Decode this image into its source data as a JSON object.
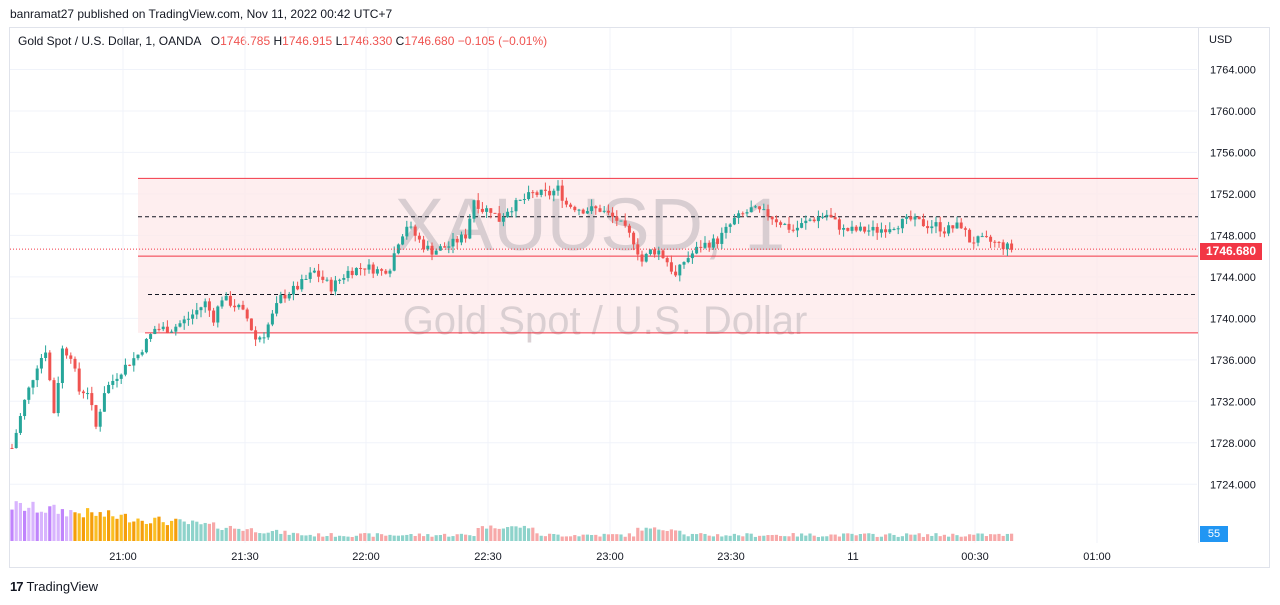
{
  "header": {
    "text": "banramat27 published on TradingView.com, Nov 11, 2022 00:42 UTC+7"
  },
  "legend": {
    "symbol": "Gold Spot / U.S. Dollar, 1, OANDA",
    "o_label": "O",
    "o": "1746.785",
    "h_label": "H",
    "h": "1746.915",
    "l_label": "L",
    "l": "1746.330",
    "c_label": "C",
    "c": "1746.680",
    "change": "−0.105 (−0.01%)"
  },
  "currency": "USD",
  "watermark": {
    "ticker": "XAUUSD, 1",
    "name": "Gold Spot / U.S. Dollar"
  },
  "last_price": "1746.680",
  "volume_value": "55",
  "footer": {
    "brand": "TradingView",
    "logo": "17"
  },
  "colors": {
    "up": "#26a69a",
    "down": "#ef5350",
    "band": "#f23645",
    "volume_badge": "#2196f3"
  },
  "chart_data": {
    "type": "candlestick",
    "title": "Gold Spot / U.S. Dollar, 1, OANDA",
    "ylabel": "USD",
    "ylim": [
      1722,
      1768
    ],
    "y_ticks": [
      "1764.000",
      "1760.000",
      "1756.000",
      "1752.000",
      "1748.000",
      "1744.000",
      "1740.000",
      "1736.000",
      "1732.000",
      "1728.000",
      "1724.000"
    ],
    "x_ticks": [
      "21:00",
      "21:30",
      "22:00",
      "22:30",
      "23:00",
      "23:30",
      "11",
      "00:30",
      "01:00"
    ],
    "price_path": [
      [
        0,
        1727.5
      ],
      [
        3,
        1732
      ],
      [
        6,
        1735.5
      ],
      [
        8,
        1737
      ],
      [
        10,
        1731
      ],
      [
        12,
        1737
      ],
      [
        14,
        1736.5
      ],
      [
        16,
        1733
      ],
      [
        18,
        1733
      ],
      [
        20,
        1729.5
      ],
      [
        22,
        1733
      ],
      [
        26,
        1735
      ],
      [
        30,
        1736.5
      ],
      [
        34,
        1739
      ],
      [
        38,
        1739
      ],
      [
        42,
        1740
      ],
      [
        46,
        1741.5
      ],
      [
        48,
        1740
      ],
      [
        50,
        1742
      ],
      [
        54,
        1741
      ],
      [
        56,
        1740
      ],
      [
        58,
        1738
      ],
      [
        60,
        1738.5
      ],
      [
        64,
        1742
      ],
      [
        68,
        1743
      ],
      [
        72,
        1744.5
      ],
      [
        76,
        1743
      ],
      [
        80,
        1744.5
      ],
      [
        84,
        1745
      ],
      [
        88,
        1744.5
      ],
      [
        90,
        1745
      ],
      [
        92,
        1747.5
      ],
      [
        94,
        1749
      ],
      [
        98,
        1747
      ],
      [
        100,
        1746.5
      ],
      [
        104,
        1747
      ],
      [
        108,
        1748
      ],
      [
        110,
        1751.5
      ],
      [
        112,
        1750.5
      ],
      [
        114,
        1750.5
      ],
      [
        116,
        1749.5
      ],
      [
        118,
        1750.5
      ],
      [
        120,
        1751
      ],
      [
        124,
        1752
      ],
      [
        128,
        1752
      ],
      [
        130,
        1752.5
      ],
      [
        132,
        1751
      ],
      [
        136,
        1750.5
      ],
      [
        140,
        1750.5
      ],
      [
        144,
        1749.5
      ],
      [
        148,
        1747.5
      ],
      [
        150,
        1745.5
      ],
      [
        152,
        1746.5
      ],
      [
        154,
        1746.5
      ],
      [
        156,
        1745.5
      ],
      [
        158,
        1744
      ],
      [
        160,
        1745.5
      ],
      [
        164,
        1747
      ],
      [
        168,
        1747.5
      ],
      [
        170,
        1748.5
      ],
      [
        172,
        1749.5
      ],
      [
        176,
        1750.5
      ],
      [
        180,
        1750
      ],
      [
        184,
        1749
      ],
      [
        186,
        1748.5
      ],
      [
        190,
        1749.5
      ],
      [
        194,
        1750
      ],
      [
        198,
        1748.5
      ],
      [
        202,
        1748.5
      ],
      [
        206,
        1748.5
      ],
      [
        210,
        1749
      ],
      [
        214,
        1749.5
      ],
      [
        218,
        1749
      ],
      [
        220,
        1749
      ],
      [
        222,
        1748.5
      ],
      [
        226,
        1749
      ],
      [
        228,
        1747.5
      ],
      [
        232,
        1747.5
      ],
      [
        236,
        1747
      ],
      [
        238,
        1746.7
      ]
    ],
    "reference_levels": [
      {
        "price": 1753.5,
        "style": "solid",
        "color": "#f23645"
      },
      {
        "price": 1749.8,
        "style": "dashed",
        "color": "#131722"
      },
      {
        "price": 1746.0,
        "style": "solid",
        "color": "#f23645"
      },
      {
        "price": 1742.3,
        "style": "dashed",
        "color": "#131722"
      },
      {
        "price": 1738.6,
        "style": "solid",
        "color": "#f23645"
      }
    ],
    "grid": true,
    "volume": {
      "shown": true,
      "last": 55
    }
  }
}
